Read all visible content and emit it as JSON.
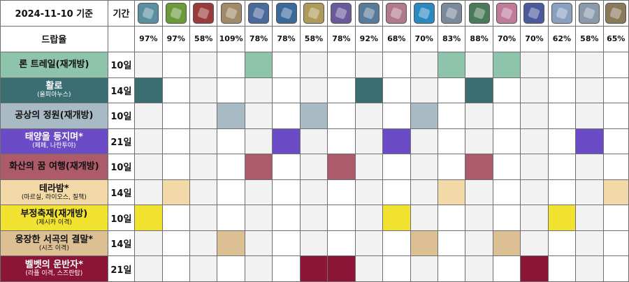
{
  "header": {
    "date_label": "2024-11-10 기준",
    "period_label": "기간"
  },
  "drop": {
    "label": "드랍율",
    "rates": [
      "97%",
      "97%",
      "58%",
      "109%",
      "78%",
      "78%",
      "58%",
      "78%",
      "92%",
      "68%",
      "70%",
      "83%",
      "88%",
      "70%",
      "70%",
      "62%",
      "58%",
      "65%"
    ]
  },
  "items": [
    {
      "icon": "machine-part-icon",
      "color": "#5a8fa0"
    },
    {
      "icon": "green-device-icon",
      "color": "#6a9a3a"
    },
    {
      "icon": "red-toolbox-icon",
      "color": "#9a3a3a"
    },
    {
      "icon": "tan-helmet-icon",
      "color": "#a08a6a"
    },
    {
      "icon": "blue-gear-icon",
      "color": "#4a6a9a"
    },
    {
      "icon": "orange-crystal-icon",
      "color": "#3a6a9a"
    },
    {
      "icon": "golden-relic-icon",
      "color": "#b09a5a"
    },
    {
      "icon": "purple-shard-icon",
      "color": "#6a5a9a"
    },
    {
      "icon": "blue-core-icon",
      "color": "#5a7a9a"
    },
    {
      "icon": "pink-block-icon",
      "color": "#b07a8a"
    },
    {
      "icon": "cyan-orb-icon",
      "color": "#2a8ac0"
    },
    {
      "icon": "silver-ore-icon",
      "color": "#7a8a9a"
    },
    {
      "icon": "green-vial-icon",
      "color": "#4a7a5a"
    },
    {
      "icon": "pink-flask-icon",
      "color": "#c07a9a"
    },
    {
      "icon": "blue-chest-icon",
      "color": "#4a5a9a"
    },
    {
      "icon": "white-plate-icon",
      "color": "#8aa0c0"
    },
    {
      "icon": "silver-emblem-icon",
      "color": "#8a9aaa"
    },
    {
      "icon": "bronze-antenna-icon",
      "color": "#8a7a5a"
    }
  ],
  "events": [
    {
      "name": "론 트레일(재개방)",
      "sub": "",
      "duration": "10일",
      "color": "#8ec3ac",
      "cells": [
        4,
        11,
        13
      ]
    },
    {
      "name": "활로",
      "sub": "(올피아누스)",
      "duration": "14일",
      "color": "#3b6e72",
      "cells": [
        0,
        8,
        12
      ]
    },
    {
      "name": "공상의 정원(재개방)",
      "sub": "",
      "duration": "10일",
      "color": "#a8bac3",
      "cells": [
        3,
        6,
        10
      ]
    },
    {
      "name": "태양을 등지며*",
      "sub": "(페페, 나란투야)",
      "duration": "21일",
      "color": "#6c4bc6",
      "cells": [
        5,
        9,
        16
      ]
    },
    {
      "name": "화산의 꿈 여행(재개방)",
      "sub": "",
      "duration": "10일",
      "color": "#ad5a6a",
      "cells": [
        4,
        7,
        12
      ]
    },
    {
      "name": "테라밤*",
      "sub": "(마르실, 라이오스, 칠책)",
      "duration": "14일",
      "color": "#f3d9a8",
      "cells": [
        1,
        11,
        17
      ]
    },
    {
      "name": "부정축재(재개방)",
      "sub": "(제시카 이격)",
      "duration": "10일",
      "color": "#f2e330",
      "cells": [
        0,
        9,
        15
      ]
    },
    {
      "name": "웅장한 서곡의 결말*",
      "sub": "(시즈 이격)",
      "duration": "14일",
      "color": "#dcbf93",
      "cells": [
        3,
        10,
        13
      ]
    },
    {
      "name": "벨벳의 운반자*",
      "sub": "(라플 이격, 스즈란탑)",
      "duration": "21일",
      "color": "#8c1537",
      "cells": [
        6,
        7,
        14
      ]
    }
  ]
}
